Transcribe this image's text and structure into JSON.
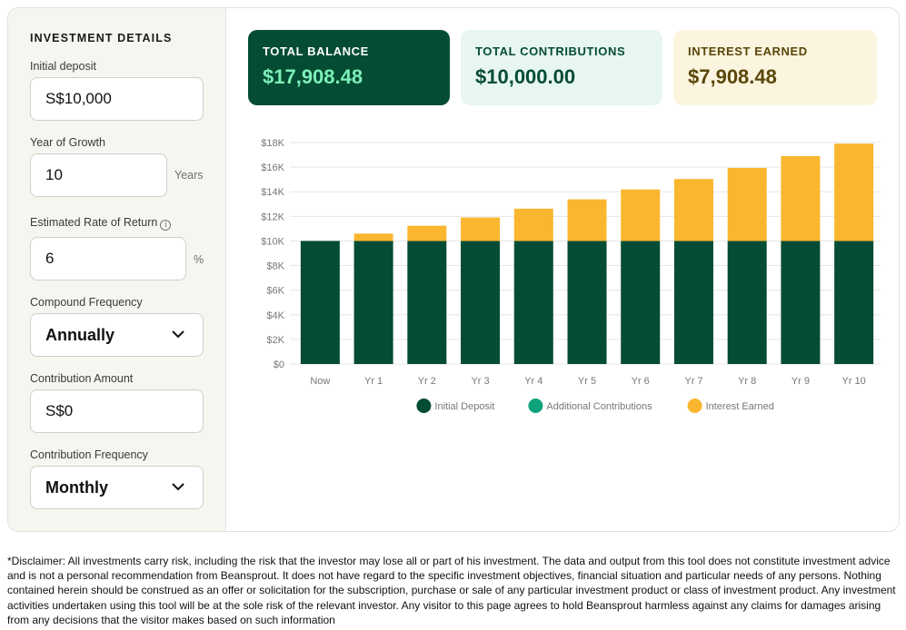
{
  "sidebar": {
    "title": "INVESTMENT DETAILS",
    "initial_deposit": {
      "label": "Initial deposit",
      "value": "S$10,000"
    },
    "years": {
      "label": "Year of Growth",
      "value": "10",
      "unit": "Years"
    },
    "rate": {
      "label": "Estimated Rate of Return",
      "info_icon": "info-icon",
      "value": "6",
      "unit": "%"
    },
    "compound": {
      "label": "Compound Frequency",
      "value": "Annually"
    },
    "contribution": {
      "label": "Contribution Amount",
      "value": "S$0"
    },
    "contribution_freq": {
      "label": "Contribution Frequency",
      "value": "Monthly"
    }
  },
  "stats": {
    "total_balance": {
      "label": "TOTAL BALANCE",
      "value": "$17,908.48"
    },
    "total_contributions": {
      "label": "TOTAL CONTRIBUTIONS",
      "value": "$10,000.00"
    },
    "interest_earned": {
      "label": "INTEREST EARNED",
      "value": "$7,908.48"
    }
  },
  "colors": {
    "initial_deposit": "#044c34",
    "additional_contributions": "#0fa37d",
    "interest_earned": "#fbb630"
  },
  "chart_data": {
    "type": "bar",
    "stacked": true,
    "categories": [
      "Now",
      "Yr 1",
      "Yr 2",
      "Yr 3",
      "Yr 4",
      "Yr 5",
      "Yr 6",
      "Yr 7",
      "Yr 8",
      "Yr 9",
      "Yr 10"
    ],
    "series": [
      {
        "name": "Initial Deposit",
        "color": "#044c34",
        "values": [
          10000,
          10000,
          10000,
          10000,
          10000,
          10000,
          10000,
          10000,
          10000,
          10000,
          10000
        ]
      },
      {
        "name": "Additional Contributions",
        "color": "#0fa37d",
        "values": [
          0,
          0,
          0,
          0,
          0,
          0,
          0,
          0,
          0,
          0,
          0
        ]
      },
      {
        "name": "Interest Earned",
        "color": "#fbb630",
        "values": [
          0,
          600,
          1236,
          1910.16,
          2624.77,
          3382.26,
          4185.19,
          5036.3,
          5938.48,
          6894.79,
          7908.48
        ]
      }
    ],
    "yticks": [
      "$0",
      "$2K",
      "$4K",
      "$6K",
      "$8K",
      "$10K",
      "$12K",
      "$14K",
      "$16K",
      "$18K"
    ],
    "ylim": [
      0,
      18000
    ],
    "grid": true,
    "legend": "bottom"
  },
  "disclaimer": "*Disclaimer: All investments carry risk, including the risk that the investor may lose all or part of his investment. The data and output from this tool does not constitute investment advice and is not a personal recommendation from Beansprout. It does not have regard to the specific investment objectives, financial situation and particular needs of any persons. Nothing contained herein should be construed as an offer or solicitation for the subscription, purchase or sale of any particular investment product or class of investment product. Any investment activities undertaken using this tool will be at the sole risk of the relevant investor. Any visitor to this page agrees to hold Beansprout harmless against any claims for damages arising from any decisions that the visitor makes based on such information"
}
